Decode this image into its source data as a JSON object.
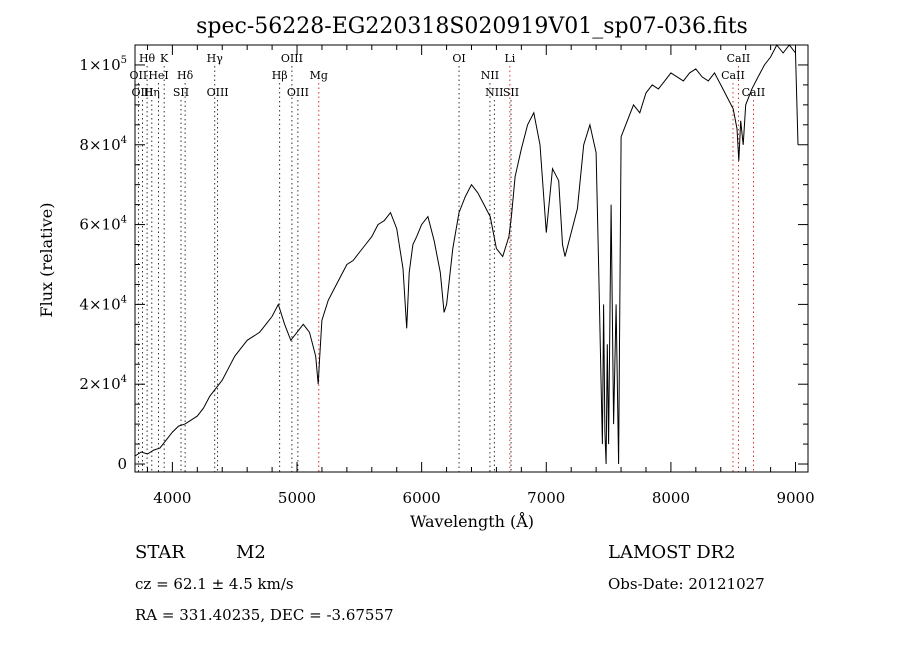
{
  "chart_data": {
    "type": "line",
    "title": "spec-56228-EG220318S020919V01_sp07-036.fits",
    "xlabel": "Wavelength (Å)",
    "ylabel": "Flux (relative)",
    "xlim": [
      3700,
      9100
    ],
    "ylim": [
      -2000,
      105000
    ],
    "x_ticks": [
      {
        "value": 4000,
        "label": "4000"
      },
      {
        "value": 5000,
        "label": "5000"
      },
      {
        "value": 6000,
        "label": "6000"
      },
      {
        "value": 7000,
        "label": "7000"
      },
      {
        "value": 8000,
        "label": "8000"
      },
      {
        "value": 9000,
        "label": "9000"
      }
    ],
    "y_ticks": [
      {
        "value": 0,
        "label": "0"
      },
      {
        "value": 20000,
        "mant": "2×10",
        "exp": "4"
      },
      {
        "value": 40000,
        "mant": "4×10",
        "exp": "4"
      },
      {
        "value": 60000,
        "mant": "6×10",
        "exp": "4"
      },
      {
        "value": 80000,
        "mant": "8×10",
        "exp": "4"
      },
      {
        "value": 100000,
        "mant": "1×10",
        "exp": "5"
      }
    ],
    "series": [
      {
        "x": [
          3700,
          3750,
          3800,
          3850,
          3900,
          3950,
          4000,
          4050,
          4100,
          4150,
          4200,
          4250,
          4300,
          4350,
          4400,
          4450,
          4500,
          4550,
          4600,
          4650,
          4700,
          4750,
          4800,
          4850,
          4900,
          4950,
          5000,
          5050,
          5100,
          5150,
          5170,
          5180,
          5200,
          5250,
          5300,
          5350,
          5400,
          5450,
          5500,
          5550,
          5600,
          5650,
          5700,
          5750,
          5800,
          5850,
          5880,
          5900,
          5930,
          5960,
          6000,
          6050,
          6100,
          6150,
          6180,
          6200,
          6250,
          6300,
          6350,
          6400,
          6450,
          6500,
          6550,
          6600,
          6650,
          6700,
          6720,
          6750,
          6800,
          6850,
          6900,
          6950,
          7000,
          7050,
          7100,
          7130,
          7150,
          7200,
          7250,
          7300,
          7350,
          7400,
          7420,
          7440,
          7450,
          7460,
          7470,
          7480,
          7490,
          7500,
          7520,
          7540,
          7560,
          7580,
          7600,
          7650,
          7700,
          7750,
          7800,
          7850,
          7900,
          7950,
          8000,
          8050,
          8100,
          8150,
          8200,
          8250,
          8300,
          8350,
          8400,
          8450,
          8500,
          8530,
          8545,
          8560,
          8580,
          8600,
          8650,
          8700,
          8750,
          8800,
          8850,
          8900,
          8950,
          9000,
          9020
        ],
        "y": [
          2000,
          3000,
          2500,
          3500,
          4000,
          6000,
          8000,
          9500,
          10000,
          11000,
          12000,
          14000,
          17000,
          19000,
          21000,
          24000,
          27000,
          29000,
          31000,
          32000,
          33000,
          35000,
          37000,
          40000,
          35000,
          31000,
          33000,
          35000,
          33000,
          27000,
          20000,
          26000,
          36000,
          41000,
          44000,
          47000,
          50000,
          51000,
          53000,
          55000,
          57000,
          60000,
          61000,
          63000,
          59000,
          49000,
          34000,
          48000,
          55000,
          57000,
          60000,
          62000,
          56000,
          48000,
          38000,
          40000,
          54000,
          63000,
          67000,
          70000,
          68000,
          65000,
          62000,
          54000,
          52000,
          57000,
          62000,
          72000,
          79000,
          85000,
          88000,
          80000,
          58000,
          74000,
          71000,
          55000,
          52000,
          58000,
          64000,
          80000,
          85000,
          78000,
          50000,
          20000,
          5000,
          40000,
          8000,
          0,
          30000,
          5000,
          65000,
          10000,
          40000,
          0,
          82000,
          86000,
          90000,
          88000,
          93000,
          95000,
          94000,
          96000,
          98000,
          97000,
          96000,
          98000,
          99000,
          97000,
          96000,
          98000,
          95000,
          92000,
          89000,
          84000,
          76000,
          86000,
          80000,
          90000,
          94000,
          97000,
          100000,
          102000,
          105000,
          103000,
          105000,
          103000,
          80000
        ]
      }
    ],
    "line_markers": [
      {
        "name": "Hθ",
        "x": 3797,
        "row": 1,
        "color": "#000000"
      },
      {
        "name": "K",
        "x": 3934,
        "row": 1,
        "color": "#000000"
      },
      {
        "name": "OII",
        "x": 3727,
        "row": 2,
        "color": "#000000"
      },
      {
        "name": "HeI",
        "x": 3889,
        "row": 2,
        "color": "#000000"
      },
      {
        "name": "Hδ",
        "x": 4102,
        "row": 2,
        "color": "#000000"
      },
      {
        "name": "OIII",
        "x": 3760,
        "row": 3,
        "color": "#000000"
      },
      {
        "name": "Hη",
        "x": 3835,
        "row": 3,
        "color": "#000000"
      },
      {
        "name": "SII",
        "x": 4069,
        "row": 3,
        "color": "#000000"
      },
      {
        "name": "Hγ",
        "x": 4340,
        "row": 1,
        "color": "#000000"
      },
      {
        "name": "OIII",
        "x": 4363,
        "row": 3,
        "color": "#000000"
      },
      {
        "name": "OIII",
        "x": 4959,
        "row": 1,
        "color": "#000000"
      },
      {
        "name": "Hβ",
        "x": 4861,
        "row": 2,
        "color": "#000000"
      },
      {
        "name": "OIII",
        "x": 5007,
        "row": 3,
        "color": "#000000"
      },
      {
        "name": "Mg",
        "x": 5175,
        "row": 2,
        "color": "#cc0000"
      },
      {
        "name": "OI",
        "x": 6300,
        "row": 1,
        "color": "#000000"
      },
      {
        "name": "NII",
        "x": 6548,
        "row": 2,
        "color": "#000000"
      },
      {
        "name": "NII",
        "x": 6583,
        "row": 3,
        "color": "#000000"
      },
      {
        "name": "Li",
        "x": 6708,
        "row": 1,
        "color": "#cc0000"
      },
      {
        "name": "SII",
        "x": 6717,
        "row": 3,
        "color": "#000000"
      },
      {
        "name": "CaII",
        "x": 8542,
        "row": 1,
        "color": "#cc0000"
      },
      {
        "name": "CaII",
        "x": 8498,
        "row": 2,
        "color": "#cc0000"
      },
      {
        "name": "CaII",
        "x": 8662,
        "row": 3,
        "color": "#cc0000"
      }
    ]
  },
  "info": {
    "object_class": "STAR",
    "subclass": "M2",
    "velocity": "cz = 62.1 ± 4.5 km/s",
    "coordinates": "RA = 331.40235, DEC =  -3.67557",
    "survey": "LAMOST DR2",
    "obs_date": "Obs-Date: 20121027"
  }
}
